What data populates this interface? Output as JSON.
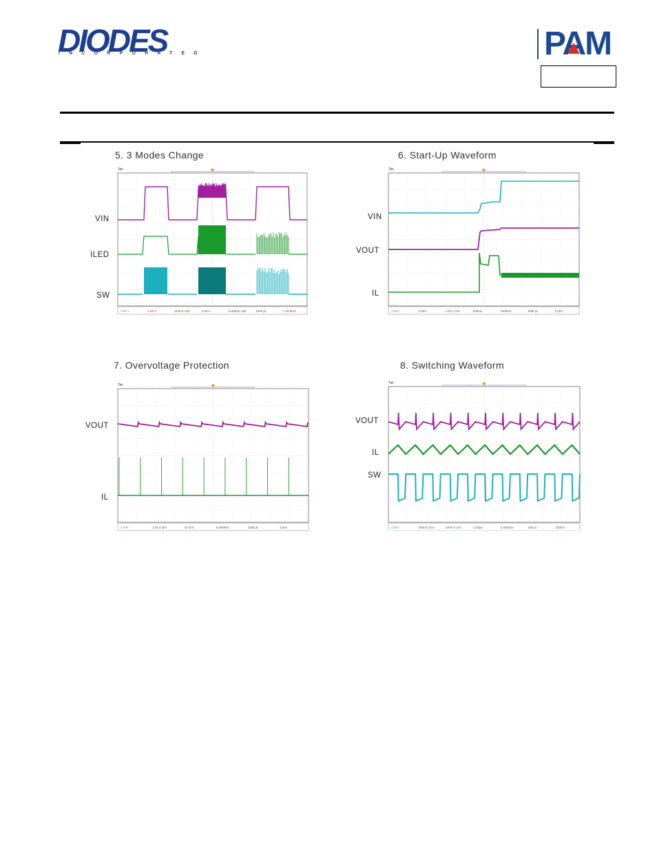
{
  "header": {
    "company_logo_text": "DIODES",
    "company_logo_sub": "INCORPORATED",
    "brand_logo_text": "PAM"
  },
  "figures": [
    {
      "id": "fig5",
      "title": "5.  3 Modes Change",
      "signals": [
        "VIN",
        "ILED",
        "SW"
      ],
      "status": [
        "2.00 V",
        "1.00 V",
        "500mA Ω%",
        "2.00 s",
        "5.00kS/s 1M",
        "100k pt",
        "7.40.8mV"
      ]
    },
    {
      "id": "fig6",
      "title": "6. Start-Up Waveform",
      "signals": [
        "VIN",
        "VOUT",
        "IL"
      ],
      "status": [
        "1.00V",
        "2.00V",
        "1.00 A Ω%",
        "400ms",
        "100kS/s",
        "100k pt",
        "2.02V"
      ]
    },
    {
      "id": "fig7",
      "title": "7. Overvoltage Protection",
      "signals": [
        "VOUT",
        "IL"
      ],
      "status": [
        "2.00V",
        "1.00 A Ω%",
        "10.0ms",
        "5.00MS/s",
        "100k pt",
        "4.54V"
      ]
    },
    {
      "id": "fig8",
      "title": "8. Switching Waveform",
      "signals": [
        "VOUT",
        "IL",
        "SW"
      ],
      "status": [
        "5.00V",
        "200mV Ω%",
        "500mA Ω%",
        "1.00μs",
        "2.50GS/s",
        "10k pt",
        "100mV"
      ]
    }
  ],
  "colors": {
    "brand_blue": "#1d3f8f",
    "brand_red": "#d32f2f",
    "trace_magenta": "#a020a0",
    "trace_green": "#1a9a2a",
    "trace_cyan": "#1ab0c0",
    "trace_teal": "#0a7a7a",
    "grid": "#cfcfcf"
  }
}
